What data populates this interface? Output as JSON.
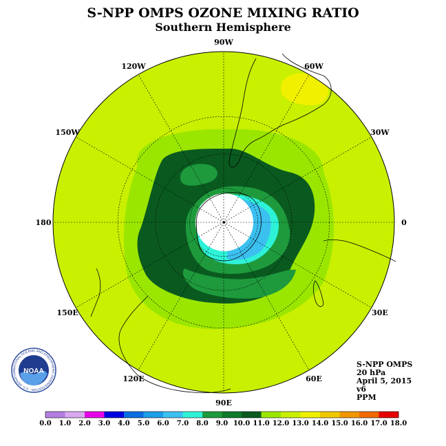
{
  "title": "S-NPP OMPS OZONE MIXING RATIO",
  "subtitle": "Southern Hemisphere",
  "longitude_labels": [
    {
      "text": "90W",
      "lon": -90
    },
    {
      "text": "60W",
      "lon": -60
    },
    {
      "text": "30W",
      "lon": -30
    },
    {
      "text": "0",
      "lon": 0
    },
    {
      "text": "30E",
      "lon": 30
    },
    {
      "text": "60E",
      "lon": 60
    },
    {
      "text": "90E",
      "lon": 90
    },
    {
      "text": "120E",
      "lon": 120
    },
    {
      "text": "150E",
      "lon": 150
    },
    {
      "text": "180",
      "lon": 180
    },
    {
      "text": "150W",
      "lon": -150
    },
    {
      "text": "120W",
      "lon": -120
    }
  ],
  "info": {
    "instrument": "S-NPP OMPS",
    "level": "20 hPa",
    "date": "April 5, 2015",
    "version": "v6",
    "units": "PPM"
  },
  "logo": {
    "text": "NOAA",
    "ring_text": "NATIONAL OCEANIC AND ATMOSPHERIC ADMINISTRATION · U.S. DEPARTMENT OF COMMERCE"
  },
  "colorbar": {
    "ticks": [
      "0.0",
      "1.0",
      "2.0",
      "3.0",
      "4.0",
      "5.0",
      "6.0",
      "7.0",
      "8.0",
      "9.0",
      "10.0",
      "11.0",
      "12.0",
      "13.0",
      "14.0",
      "15.0",
      "16.0",
      "17.0",
      "18.0"
    ],
    "colors": [
      "#b27fe0",
      "#d8a8f0",
      "#e600e6",
      "#0000e0",
      "#0a6ee0",
      "#1c9ee8",
      "#3cc0f0",
      "#2ef2d8",
      "#1e9a3c",
      "#0f7a2a",
      "#0a5a20",
      "#9be600",
      "#c8f000",
      "#f0f000",
      "#f0c800",
      "#f09600",
      "#f06a00",
      "#e60000",
      "#7a4a2a"
    ]
  },
  "chart_data": {
    "type": "polar-stereographic-contour-map",
    "projection": "south polar stereographic",
    "variable": "ozone mixing ratio",
    "units": "PPM",
    "pressure_level": "20 hPa",
    "date": "April 5, 2015",
    "levels": [
      0,
      1,
      2,
      3,
      4,
      5,
      6,
      7,
      8,
      9,
      10,
      11,
      12,
      13,
      14,
      15,
      16,
      17,
      18
    ],
    "regions": [
      {
        "description": "no data (polar night)",
        "value_range": null,
        "location": "pole"
      },
      {
        "description": "ring around pole",
        "value_range": [
          7,
          8
        ],
        "location": "edge of polar vortex"
      },
      {
        "description": "patch",
        "value_range": [
          6,
          7
        ],
        "location": "near 0-30E close to pole"
      },
      {
        "description": "vortex collar",
        "value_range": [
          9,
          10
        ],
        "location": "mid latitudes ring"
      },
      {
        "description": "patches",
        "value_range": [
          8,
          9
        ],
        "location": "inside collar"
      },
      {
        "description": "surrounding band",
        "value_range": [
          11,
          12
        ],
        "location": "around collar"
      },
      {
        "description": "outer region",
        "value_range": [
          12,
          13
        ],
        "location": "low latitudes"
      },
      {
        "description": "patch",
        "value_range": [
          13,
          14
        ],
        "location": "near 50W, 10S"
      }
    ]
  }
}
